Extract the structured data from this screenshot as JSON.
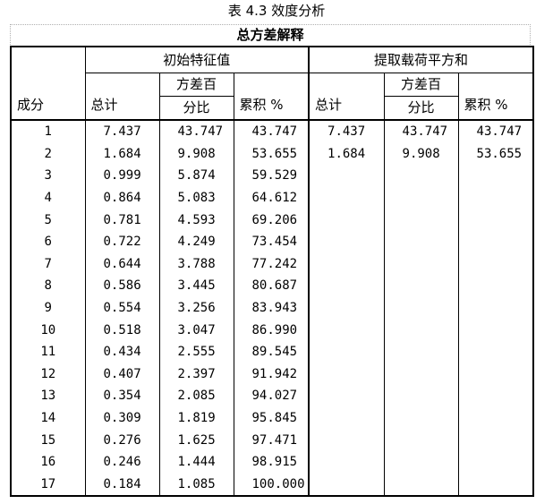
{
  "caption": "表 4.3 效度分析",
  "title": "总方差解释",
  "header": {
    "component": "成分",
    "group_initial": "初始特征值",
    "group_extracted": "提取载荷平方和",
    "col_total": "总计",
    "col_variance_line1": "方差百",
    "col_variance_line2": "分比",
    "col_cumulative": "累积 %"
  },
  "rows": [
    {
      "component": "1",
      "total": "7.437",
      "variance": "43.747",
      "cumulative": "43.747",
      "ext_total": "7.437",
      "ext_variance": "43.747",
      "ext_cumulative": "43.747"
    },
    {
      "component": "2",
      "total": "1.684",
      "variance": "9.908",
      "cumulative": "53.655",
      "ext_total": "1.684",
      "ext_variance": "9.908",
      "ext_cumulative": "53.655"
    },
    {
      "component": "3",
      "total": "0.999",
      "variance": "5.874",
      "cumulative": "59.529"
    },
    {
      "component": "4",
      "total": "0.864",
      "variance": "5.083",
      "cumulative": "64.612"
    },
    {
      "component": "5",
      "total": "0.781",
      "variance": "4.593",
      "cumulative": "69.206"
    },
    {
      "component": "6",
      "total": "0.722",
      "variance": "4.249",
      "cumulative": "73.454"
    },
    {
      "component": "7",
      "total": "0.644",
      "variance": "3.788",
      "cumulative": "77.242"
    },
    {
      "component": "8",
      "total": "0.586",
      "variance": "3.445",
      "cumulative": "80.687"
    },
    {
      "component": "9",
      "total": "0.554",
      "variance": "3.256",
      "cumulative": "83.943"
    },
    {
      "component": "10",
      "total": "0.518",
      "variance": "3.047",
      "cumulative": "86.990"
    },
    {
      "component": "11",
      "total": "0.434",
      "variance": "2.555",
      "cumulative": "89.545"
    },
    {
      "component": "12",
      "total": "0.407",
      "variance": "2.397",
      "cumulative": "91.942"
    },
    {
      "component": "13",
      "total": "0.354",
      "variance": "2.085",
      "cumulative": "94.027"
    },
    {
      "component": "14",
      "total": "0.309",
      "variance": "1.819",
      "cumulative": "95.845"
    },
    {
      "component": "15",
      "total": "0.276",
      "variance": "1.625",
      "cumulative": "97.471"
    },
    {
      "component": "16",
      "total": "0.246",
      "variance": "1.444",
      "cumulative": "98.915"
    },
    {
      "component": "17",
      "total": "0.184",
      "variance": "1.085",
      "cumulative": "100.000"
    }
  ]
}
